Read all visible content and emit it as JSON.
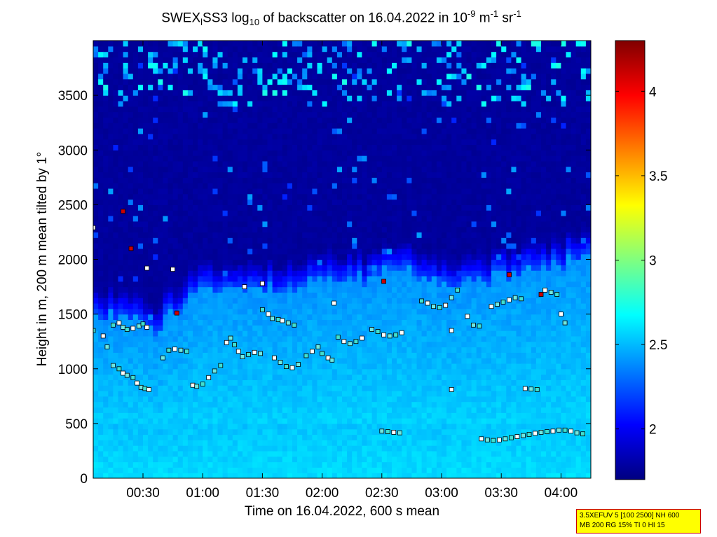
{
  "title": {
    "prefix": "SWEX",
    "sub1": "l",
    "mid": "SS3 log",
    "sub2": "10",
    "rest": " of backscatter on 16.04.2022 in 10",
    "exp1": "-9",
    "unit1": " m",
    "exp2": "-1",
    "unit2": " sr",
    "exp3": "-1"
  },
  "info": {
    "line1": "3.5XEFUV 5 [100 2500] NH 600",
    "line2": "MB 200 RG 15% TI 0 HI 15"
  },
  "chart_data": {
    "type": "heatmap",
    "xlabel": "Time on 16.04.2022, 600 s mean",
    "ylabel": "Height in m, 200 m mean tilted by 1°",
    "x_range_minutes": [
      5,
      255
    ],
    "ylim": [
      0,
      4000
    ],
    "x_ticks": [
      "00:30",
      "01:00",
      "01:30",
      "02:00",
      "02:30",
      "03:00",
      "03:30",
      "04:00"
    ],
    "x_tick_minutes": [
      30,
      60,
      90,
      120,
      150,
      180,
      210,
      240
    ],
    "y_ticks": [
      0,
      500,
      1000,
      1500,
      2000,
      2500,
      3000,
      3500
    ],
    "colorbar": {
      "range": [
        1.7,
        4.3
      ],
      "ticks": [
        "2",
        "2.5",
        "3",
        "3.5",
        "4"
      ],
      "tick_values": [
        2,
        2.5,
        3,
        3.5,
        4
      ],
      "colormap": "jet"
    },
    "boundary_height_m": [
      [
        5,
        1500
      ],
      [
        20,
        1450
      ],
      [
        35,
        1350
      ],
      [
        45,
        1500
      ],
      [
        60,
        1700
      ],
      [
        75,
        1800
      ],
      [
        90,
        1750
      ],
      [
        105,
        1750
      ],
      [
        120,
        1800
      ],
      [
        135,
        1800
      ],
      [
        150,
        1850
      ],
      [
        165,
        1900
      ],
      [
        180,
        1800
      ],
      [
        195,
        1800
      ],
      [
        210,
        1850
      ],
      [
        225,
        1900
      ],
      [
        240,
        1950
      ],
      [
        255,
        2100
      ]
    ],
    "series": [
      {
        "name": "layer_points",
        "points": [
          [
            5,
            1350
          ],
          [
            10,
            1300
          ],
          [
            12,
            1200
          ],
          [
            15,
            1400
          ],
          [
            18,
            1420
          ],
          [
            20,
            1380
          ],
          [
            22,
            1360
          ],
          [
            25,
            1370
          ],
          [
            28,
            1390
          ],
          [
            30,
            1410
          ],
          [
            32,
            1380
          ],
          [
            15,
            1030
          ],
          [
            18,
            1000
          ],
          [
            20,
            960
          ],
          [
            22,
            940
          ],
          [
            25,
            920
          ],
          [
            27,
            870
          ],
          [
            29,
            830
          ],
          [
            31,
            820
          ],
          [
            33,
            810
          ],
          [
            40,
            1100
          ],
          [
            43,
            1170
          ],
          [
            46,
            1180
          ],
          [
            49,
            1170
          ],
          [
            52,
            1160
          ],
          [
            55,
            850
          ],
          [
            57,
            840
          ],
          [
            60,
            860
          ],
          [
            63,
            920
          ],
          [
            66,
            980
          ],
          [
            69,
            1030
          ],
          [
            72,
            1240
          ],
          [
            74,
            1280
          ],
          [
            76,
            1220
          ],
          [
            78,
            1160
          ],
          [
            80,
            1110
          ],
          [
            83,
            1130
          ],
          [
            86,
            1150
          ],
          [
            89,
            1140
          ],
          [
            90,
            1540
          ],
          [
            93,
            1500
          ],
          [
            95,
            1460
          ],
          [
            98,
            1450
          ],
          [
            100,
            1440
          ],
          [
            103,
            1420
          ],
          [
            106,
            1400
          ],
          [
            96,
            1100
          ],
          [
            99,
            1060
          ],
          [
            102,
            1020
          ],
          [
            105,
            1010
          ],
          [
            108,
            1040
          ],
          [
            112,
            1120
          ],
          [
            115,
            1160
          ],
          [
            118,
            1200
          ],
          [
            120,
            1140
          ],
          [
            123,
            1100
          ],
          [
            125,
            1080
          ],
          [
            128,
            1290
          ],
          [
            131,
            1250
          ],
          [
            134,
            1230
          ],
          [
            137,
            1250
          ],
          [
            140,
            1280
          ],
          [
            145,
            1360
          ],
          [
            148,
            1340
          ],
          [
            151,
            1310
          ],
          [
            154,
            1300
          ],
          [
            157,
            1310
          ],
          [
            160,
            1330
          ],
          [
            150,
            430
          ],
          [
            153,
            425
          ],
          [
            156,
            420
          ],
          [
            159,
            415
          ],
          [
            170,
            1620
          ],
          [
            173,
            1600
          ],
          [
            176,
            1570
          ],
          [
            179,
            1560
          ],
          [
            182,
            1580
          ],
          [
            185,
            1650
          ],
          [
            188,
            1720
          ],
          [
            193,
            1480
          ],
          [
            196,
            1400
          ],
          [
            199,
            1390
          ],
          [
            200,
            360
          ],
          [
            203,
            350
          ],
          [
            206,
            345
          ],
          [
            209,
            350
          ],
          [
            212,
            360
          ],
          [
            215,
            370
          ],
          [
            218,
            380
          ],
          [
            221,
            390
          ],
          [
            224,
            400
          ],
          [
            227,
            410
          ],
          [
            230,
            420
          ],
          [
            233,
            425
          ],
          [
            236,
            430
          ],
          [
            239,
            440
          ],
          [
            242,
            440
          ],
          [
            245,
            430
          ],
          [
            248,
            415
          ],
          [
            251,
            405
          ],
          [
            205,
            1570
          ],
          [
            208,
            1590
          ],
          [
            211,
            1610
          ],
          [
            214,
            1630
          ],
          [
            217,
            1650
          ],
          [
            220,
            1640
          ],
          [
            222,
            820
          ],
          [
            225,
            815
          ],
          [
            228,
            810
          ],
          [
            232,
            1720
          ],
          [
            235,
            1700
          ],
          [
            238,
            1680
          ],
          [
            240,
            1500
          ],
          [
            242,
            1420
          ]
        ]
      },
      {
        "name": "red_points",
        "points": [
          [
            20,
            2440
          ],
          [
            24,
            2100
          ],
          [
            47,
            1510
          ],
          [
            151,
            1800
          ],
          [
            214,
            1860
          ],
          [
            230,
            1680
          ]
        ]
      },
      {
        "name": "white_points",
        "points": [
          [
            5,
            2290
          ],
          [
            45,
            1910
          ],
          [
            81,
            1750
          ],
          [
            90,
            1780
          ],
          [
            32,
            1920
          ],
          [
            126,
            1600
          ],
          [
            185,
            1350
          ],
          [
            240,
            1500
          ],
          [
            185,
            810
          ]
        ]
      }
    ]
  }
}
